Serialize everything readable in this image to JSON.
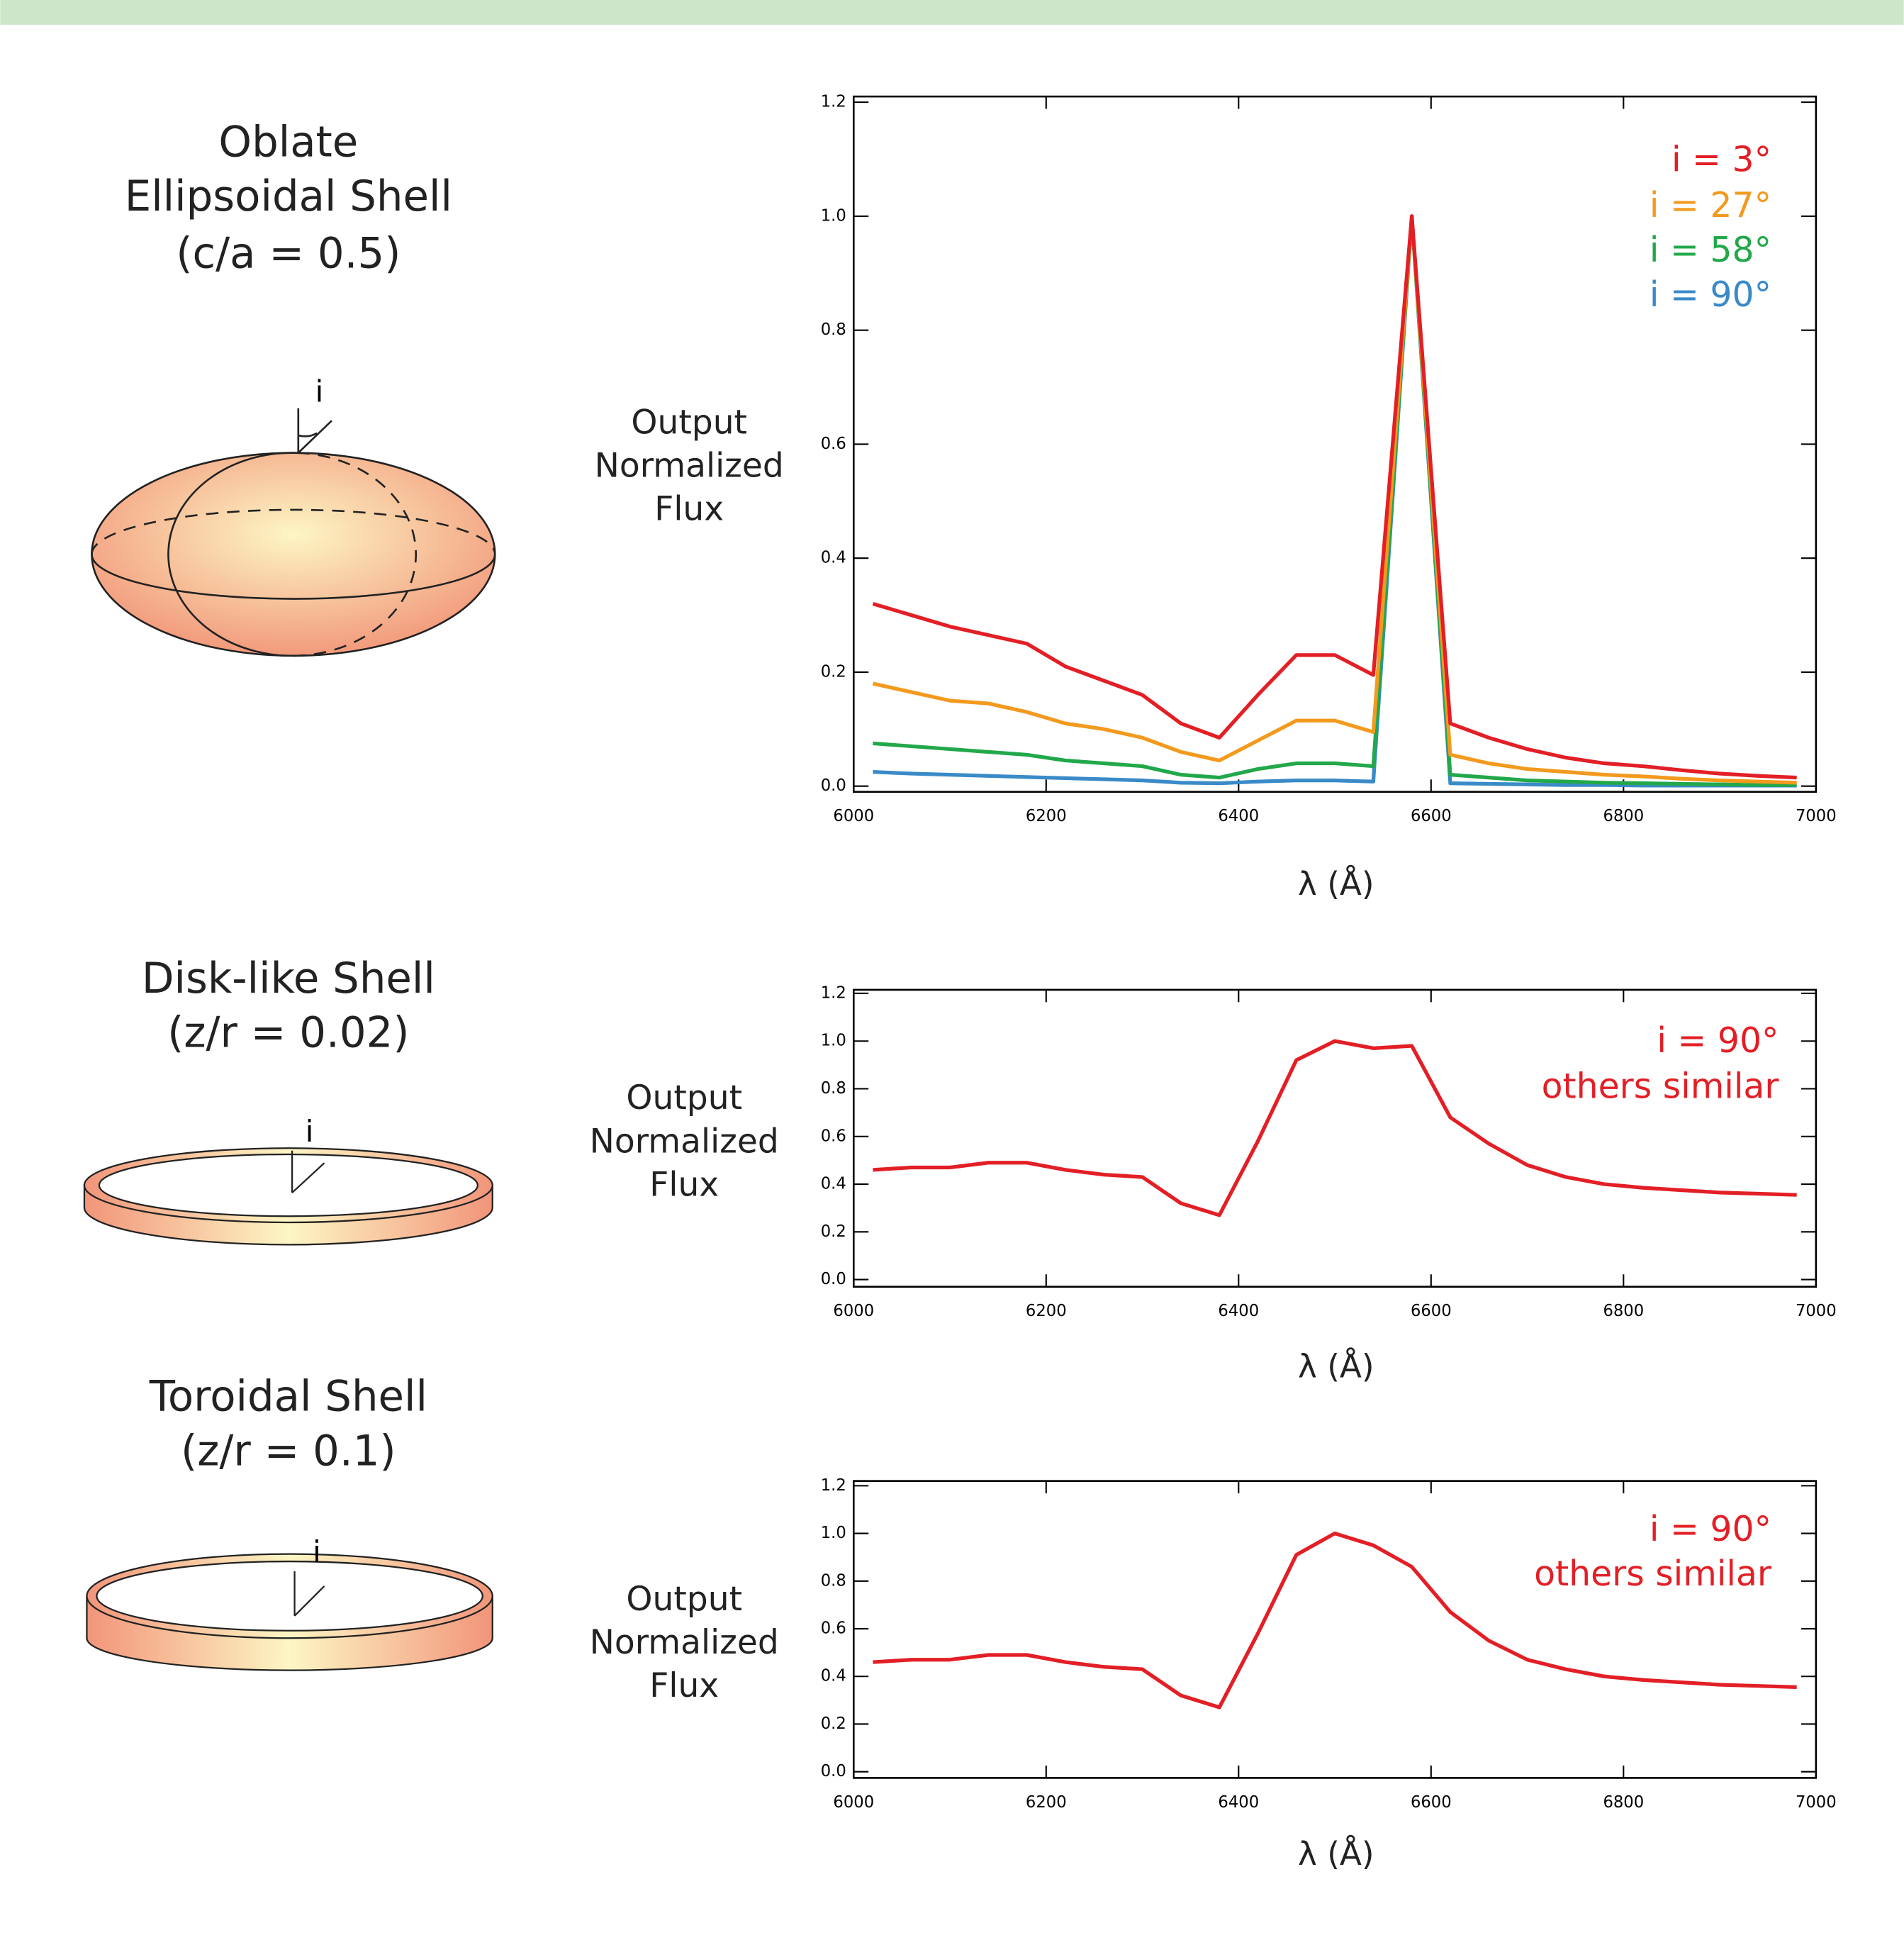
{
  "shapes": [
    {
      "lines": [
        "Oblate",
        "Ellipsoidal Shell",
        "(c/a = 0.5)"
      ],
      "angle_label": "i"
    },
    {
      "lines": [
        "Disk-like Shell",
        "(z/r = 0.02)"
      ],
      "angle_label": "i"
    },
    {
      "lines": [
        "Toroidal Shell",
        "(z/r = 0.1)"
      ],
      "angle_label": "i"
    }
  ],
  "chart_data": [
    {
      "type": "line",
      "xlabel": "λ (Å)",
      "ylabel": [
        "Output",
        "Normalized",
        "Flux"
      ],
      "xlim": [
        6000,
        7000
      ],
      "xticks": [
        6000,
        6200,
        6400,
        6600,
        6800,
        7000
      ],
      "ylim": [
        -0.01,
        1.21
      ],
      "yticks": [
        {
          "value": 0,
          "label": "0.0"
        },
        0.2,
        0.4,
        0.6,
        0.8,
        {
          "value": 1,
          "label": "1.0"
        },
        1.2
      ],
      "x": [
        6020,
        6060,
        6100,
        6140,
        6180,
        6220,
        6260,
        6300,
        6340,
        6380,
        6420,
        6460,
        6500,
        6540,
        6580,
        6620,
        6660,
        6700,
        6740,
        6780,
        6820,
        6860,
        6900,
        6940,
        6980
      ],
      "series": [
        {
          "name": "i = 90°",
          "color": "#3a8ac8",
          "values": [
            0.025,
            0.022,
            0.02,
            0.018,
            0.016,
            0.014,
            0.012,
            0.01,
            0.006,
            0.005,
            0.008,
            0.01,
            0.01,
            0.008,
            1.0,
            0.005,
            0.004,
            0.003,
            0.002,
            0.002,
            0.001,
            0.001,
            0.001,
            0.001,
            0.001
          ]
        },
        {
          "name": "i = 58°",
          "color": "#22a84a",
          "values": [
            0.075,
            0.07,
            0.065,
            0.06,
            0.055,
            0.045,
            0.04,
            0.035,
            0.02,
            0.015,
            0.03,
            0.04,
            0.04,
            0.035,
            1.0,
            0.02,
            0.015,
            0.01,
            0.008,
            0.006,
            0.005,
            0.004,
            0.003,
            0.002,
            0.002
          ]
        },
        {
          "name": "i = 27°",
          "color": "#f39a1e",
          "values": [
            0.18,
            0.165,
            0.15,
            0.145,
            0.13,
            0.11,
            0.1,
            0.085,
            0.06,
            0.045,
            0.08,
            0.115,
            0.115,
            0.095,
            1.0,
            0.055,
            0.04,
            0.03,
            0.025,
            0.02,
            0.017,
            0.013,
            0.01,
            0.008,
            0.006
          ]
        },
        {
          "name": "i = 3°",
          "color": "#e31f26",
          "values": [
            0.32,
            0.3,
            0.28,
            0.265,
            0.25,
            0.21,
            0.185,
            0.16,
            0.11,
            0.085,
            0.16,
            0.23,
            0.23,
            0.195,
            1.0,
            0.11,
            0.085,
            0.065,
            0.05,
            0.04,
            0.035,
            0.028,
            0.022,
            0.018,
            0.015
          ]
        }
      ],
      "legend": "upper right"
    },
    {
      "type": "line",
      "xlabel": "λ (Å)",
      "ylabel": [
        "Output",
        "Normalized",
        "Flux"
      ],
      "xlim": [
        6000,
        7000
      ],
      "xticks": [
        6000,
        6200,
        6400,
        6600,
        6800,
        7000
      ],
      "ylim": [
        -0.03,
        1.215
      ],
      "yticks": [
        {
          "value": 0,
          "label": "0.0"
        },
        0.2,
        0.4,
        0.6,
        0.8,
        {
          "value": 1,
          "label": "1.0"
        },
        1.2
      ],
      "x": [
        6020,
        6060,
        6100,
        6140,
        6180,
        6220,
        6260,
        6300,
        6340,
        6380,
        6420,
        6460,
        6500,
        6540,
        6580,
        6620,
        6660,
        6700,
        6740,
        6780,
        6820,
        6860,
        6900,
        6940,
        6980
      ],
      "series": [
        {
          "name": "i = 90°",
          "color": "#e31f26",
          "values": [
            0.46,
            0.47,
            0.47,
            0.49,
            0.49,
            0.46,
            0.44,
            0.43,
            0.32,
            0.27,
            0.58,
            0.92,
            1.0,
            0.97,
            0.98,
            0.68,
            0.57,
            0.48,
            0.43,
            0.4,
            0.385,
            0.375,
            0.365,
            0.36,
            0.355
          ]
        }
      ],
      "annotations": [
        "others similar"
      ],
      "legend": "upper right"
    },
    {
      "type": "line",
      "xlabel": "λ (Å)",
      "ylabel": [
        "Output",
        "Normalized",
        "Flux"
      ],
      "xlim": [
        6000,
        7000
      ],
      "xticks": [
        6000,
        6200,
        6400,
        6600,
        6800,
        7000
      ],
      "ylim": [
        -0.026,
        1.22
      ],
      "yticks": [
        {
          "value": 0,
          "label": "0.0"
        },
        0.2,
        0.4,
        0.6,
        0.8,
        {
          "value": 1,
          "label": "1.0"
        },
        1.2
      ],
      "x": [
        6020,
        6060,
        6100,
        6140,
        6180,
        6220,
        6260,
        6300,
        6340,
        6380,
        6420,
        6460,
        6500,
        6540,
        6580,
        6620,
        6660,
        6700,
        6740,
        6780,
        6820,
        6860,
        6900,
        6940,
        6980
      ],
      "series": [
        {
          "name": "i = 90°",
          "color": "#e31f26",
          "values": [
            0.46,
            0.47,
            0.47,
            0.49,
            0.49,
            0.46,
            0.44,
            0.43,
            0.32,
            0.27,
            0.58,
            0.91,
            1.0,
            0.95,
            0.86,
            0.67,
            0.55,
            0.47,
            0.43,
            0.4,
            0.385,
            0.375,
            0.365,
            0.36,
            0.355
          ]
        }
      ],
      "annotations": [
        "others similar"
      ],
      "legend": "upper right"
    }
  ]
}
